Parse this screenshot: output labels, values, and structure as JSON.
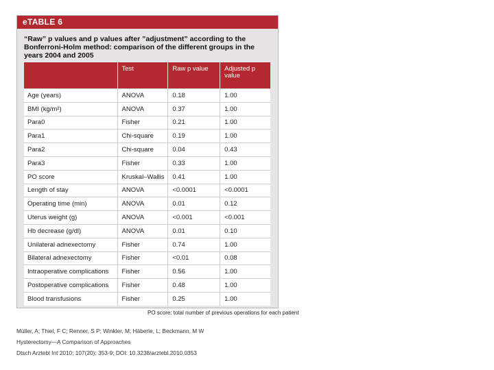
{
  "table_label": "eTABLE 6",
  "caption": "“Raw” p values and p values after ”adjustment” according to the Bonferroni-Holm method: comparison of the different groups in the years 2004 and 2005",
  "headers": [
    "",
    "Test",
    "Raw p value",
    "Adjusted p value"
  ],
  "rows": [
    [
      "Age (years)",
      "ANOVA",
      "0.18",
      "1.00"
    ],
    [
      "BMI (kg/m²)",
      "ANOVA",
      "0.37",
      "1.00"
    ],
    [
      "Para0",
      "Fisher",
      "0.21",
      "1.00"
    ],
    [
      "Para1",
      "Chi-square",
      "0.19",
      "1.00"
    ],
    [
      "Para2",
      "Chi-square",
      "0.04",
      "0.43"
    ],
    [
      "Para3",
      "Fisher",
      "0.33",
      "1.00"
    ],
    [
      "PO score",
      "Kruskal–Wallis",
      "0.41",
      "1.00"
    ],
    [
      "Length of stay",
      "ANOVA",
      "<0.0001",
      "<0.0001"
    ],
    [
      "Operating time (min)",
      "ANOVA",
      "0.01",
      "0.12"
    ],
    [
      "Uterus weight (g)",
      "ANOVA",
      "<0.001",
      "<0.001"
    ],
    [
      "Hb decrease (g/dl)",
      "ANOVA",
      "0.01",
      "0.10"
    ],
    [
      "Unilateral adnexectomy",
      "Fisher",
      "0.74",
      "1.00"
    ],
    [
      "Bilateral adnexectomy",
      "Fisher",
      "<0.01",
      "0.08"
    ],
    [
      "Intraoperative complications",
      "Fisher",
      "0.56",
      "1.00"
    ],
    [
      "Postoperative complications",
      "Fisher",
      "0.48",
      "1.00"
    ],
    [
      "Blood transfusions",
      "Fisher",
      "0.25",
      "1.00"
    ]
  ],
  "footnote": "PO score: total number of previous operations for each patient",
  "citation": {
    "authors": "Müller, A; Thiel, F C; Renner, S P; Winkler, M; Häberle, L; Beckmann, M W",
    "title": "Hysterectomy—A Comparison of Approaches",
    "source": "Dtsch Arztebl Int 2010; 107(20): 353-9; DOI: 10.3238/arztebl.2010.0353"
  }
}
